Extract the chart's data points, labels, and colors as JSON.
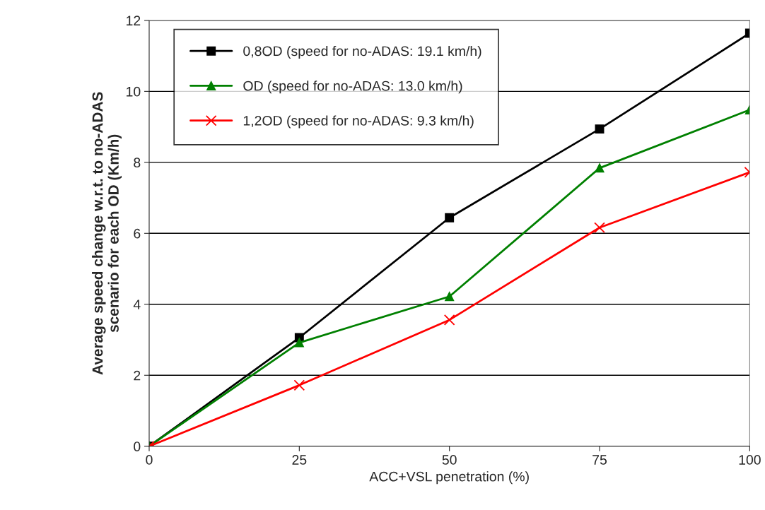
{
  "chart_data": {
    "type": "line",
    "xlabel": "ACC+VSL penetration (%)",
    "ylabel": "Average speed change w.r.t. to no-ADAS\nscenario for each OD (Km/h)",
    "x": [
      0,
      25,
      50,
      75,
      100
    ],
    "series": [
      {
        "name": "0,8OD (speed for no-ADAS: 19.1 km/h)",
        "color": "#000000",
        "marker": "square",
        "values": [
          0,
          3.06,
          6.44,
          8.94,
          11.64
        ]
      },
      {
        "name": "OD (speed for no-ADAS: 13.0 km/h)",
        "color": "#008000",
        "marker": "triangle",
        "values": [
          0,
          2.92,
          4.22,
          7.84,
          9.48
        ]
      },
      {
        "name": "1,2OD (speed for no-ADAS: 9.3 km/h)",
        "color": "#ff0000",
        "marker": "cross",
        "values": [
          0,
          1.72,
          3.56,
          6.16,
          7.72
        ]
      }
    ],
    "xlim": [
      0,
      100
    ],
    "xticks": [
      0,
      25,
      50,
      75,
      100
    ],
    "ylim": [
      0,
      12
    ],
    "yticks": [
      0,
      2,
      4,
      6,
      8,
      10,
      12
    ],
    "grid": "y",
    "legend": "top left",
    "line_style": "solid"
  }
}
